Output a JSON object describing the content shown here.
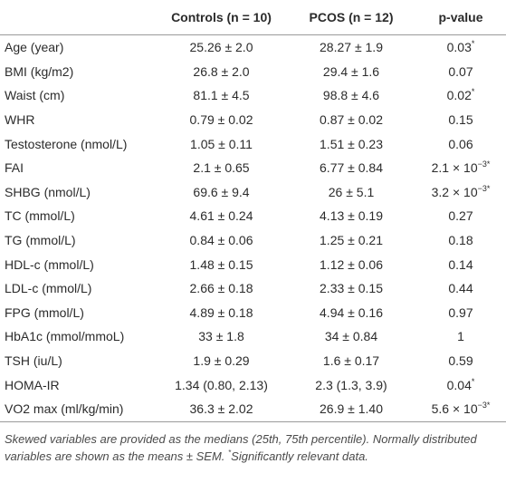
{
  "table": {
    "header": [
      "",
      "Controls (n = 10)",
      "PCOS (n = 12)",
      "p-value"
    ],
    "rows": [
      {
        "label": "Age (year)",
        "controls": "25.26 ± 2.0",
        "pcos": "28.27 ± 1.9",
        "p_value": "0.03",
        "p_sup": "*"
      },
      {
        "label": "BMI (kg/m2)",
        "controls": "26.8 ± 2.0",
        "pcos": "29.4 ± 1.6",
        "p_value": "0.07"
      },
      {
        "label": "Waist (cm)",
        "controls": "81.1 ± 4.5",
        "pcos": "98.8 ± 4.6",
        "p_value": "0.02",
        "p_sup": "*"
      },
      {
        "label": "WHR",
        "controls": "0.79 ± 0.02",
        "pcos": "0.87 ± 0.02",
        "p_value": "0.15"
      },
      {
        "label": "Testosterone (nmol/L)",
        "controls": "1.05 ± 0.11",
        "pcos": "1.51 ± 0.23",
        "p_value": "0.06"
      },
      {
        "label": "FAI",
        "controls": "2.1 ± 0.65",
        "pcos": "6.77 ± 0.84",
        "p_value": "2.1 × 10",
        "p_sup": "−3*"
      },
      {
        "label": "SHBG (nmol/L)",
        "controls": "69.6 ± 9.4",
        "pcos": "26 ± 5.1",
        "p_value": "3.2 × 10",
        "p_sup": "−3*"
      },
      {
        "label": "TC (mmol/L)",
        "controls": "4.61 ± 0.24",
        "pcos": "4.13 ± 0.19",
        "p_value": "0.27"
      },
      {
        "label": "TG (mmol/L)",
        "controls": "0.84 ± 0.06",
        "pcos": "1.25 ± 0.21",
        "p_value": "0.18"
      },
      {
        "label": "HDL-c (mmol/L)",
        "controls": "1.48 ± 0.15",
        "pcos": "1.12 ± 0.06",
        "p_value": "0.14"
      },
      {
        "label": "LDL-c (mmol/L)",
        "controls": "2.66 ± 0.18",
        "pcos": "2.33 ± 0.15",
        "p_value": "0.44"
      },
      {
        "label": "FPG (mmol/L)",
        "controls": "4.89 ± 0.18",
        "pcos": "4.94 ± 0.16",
        "p_value": "0.97"
      },
      {
        "label": "HbA1c (mmol/mmoL)",
        "controls": "33 ± 1.8",
        "pcos": "34 ± 0.84",
        "p_value": "1"
      },
      {
        "label": "TSH (iu/L)",
        "controls": "1.9 ± 0.29",
        "pcos": "1.6 ± 0.17",
        "p_value": "0.59"
      },
      {
        "label": "HOMA-IR",
        "controls": "1.34 (0.80, 2.13)",
        "pcos": "2.3 (1.3, 3.9)",
        "p_value": "0.04",
        "p_sup": "*"
      },
      {
        "label": "VO2 max (ml/kg/min)",
        "controls": "36.3 ± 2.02",
        "pcos": "26.9 ± 1.40",
        "p_value": "5.6 × 10",
        "p_sup": "−3*"
      }
    ]
  },
  "footnote": {
    "text": "Skewed variables are provided as the medians (25th, 75th percentile). Normally distributed variables are shown as the means ± SEM. ",
    "mark": "*",
    "tail": "Significantly relevant data."
  }
}
